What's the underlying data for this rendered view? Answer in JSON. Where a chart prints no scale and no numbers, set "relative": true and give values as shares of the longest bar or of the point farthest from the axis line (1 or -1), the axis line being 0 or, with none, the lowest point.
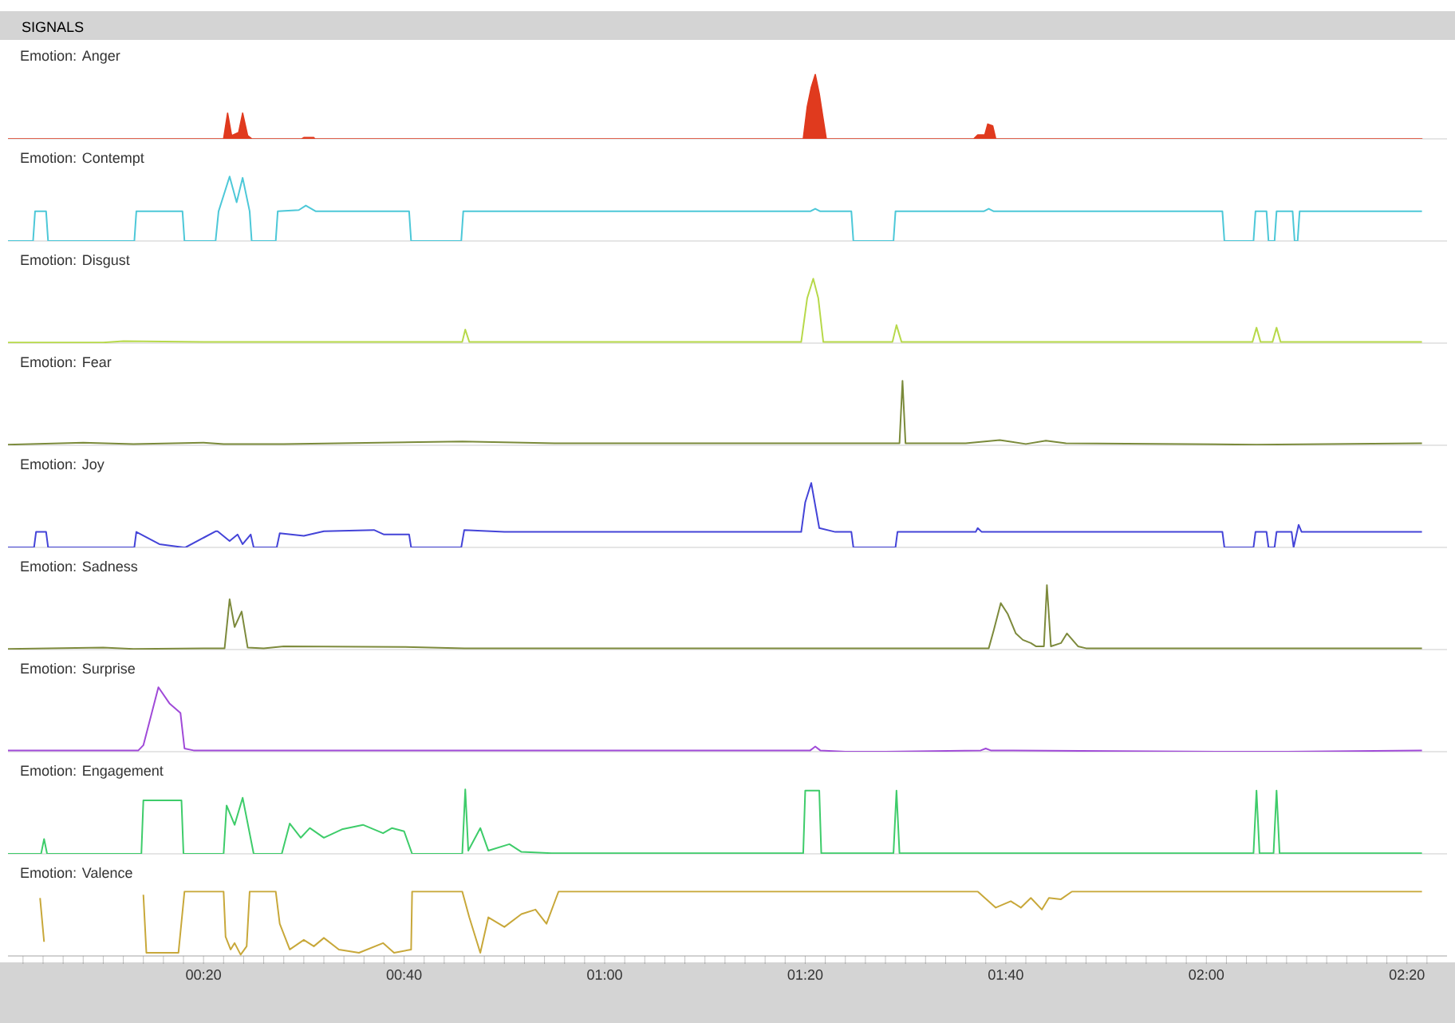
{
  "chart_data": [
    {
      "type": "area",
      "title": "SIGNALS",
      "subtitle": "Emotion: Anger",
      "relative": true,
      "color": "#e03a1e",
      "xlim": [
        0.5,
        144
      ],
      "tick_labels": false,
      "x": [
        0.5,
        22.0,
        22.4,
        22.8,
        23.5,
        23.9,
        24.4,
        24.8,
        29.8,
        30.0,
        31.0,
        31.1,
        79.8,
        80.2,
        80.6,
        81.0,
        81.4,
        81.8,
        82.1,
        96.8,
        97.2,
        97.9,
        98.2,
        98.7,
        99.0,
        141.5
      ],
      "values": [
        0,
        0,
        0.4,
        0.05,
        0.1,
        0.4,
        0.05,
        0,
        0,
        0.02,
        0.02,
        0,
        0,
        0.5,
        0.8,
        1,
        0.7,
        0.3,
        0,
        0,
        0.06,
        0.06,
        0.23,
        0.2,
        0,
        0
      ]
    },
    {
      "type": "line",
      "title": "Emotion: Contempt",
      "relative": true,
      "color": "#4dc8d8",
      "xlim": [
        0.5,
        144
      ],
      "tick_labels": false,
      "x": [
        0.5,
        3.0,
        3.2,
        4.3,
        4.5,
        13.1,
        13.3,
        17.9,
        18.1,
        21.2,
        21.5,
        22.6,
        23.3,
        23.9,
        24.6,
        24.8,
        27.2,
        27.4,
        29.5,
        30.2,
        31.2,
        40.5,
        40.7,
        45.7,
        45.9,
        80.5,
        81.0,
        81.5,
        84.6,
        84.8,
        88.8,
        89.0,
        97.8,
        98.3,
        98.8,
        121.6,
        121.8,
        124.7,
        124.9,
        126.0,
        126.2,
        126.8,
        127.0,
        128.6,
        128.8,
        129.1,
        129.3,
        141.5
      ],
      "values": [
        0,
        0,
        0.46,
        0.46,
        0,
        0,
        0.46,
        0.46,
        0,
        0,
        0.46,
        1,
        0.6,
        0.98,
        0.46,
        0,
        0,
        0.46,
        0.48,
        0.55,
        0.46,
        0.46,
        0,
        0,
        0.46,
        0.46,
        0.5,
        0.46,
        0.46,
        0,
        0,
        0.46,
        0.46,
        0.5,
        0.46,
        0.46,
        0,
        0,
        0.46,
        0.46,
        0,
        0,
        0.46,
        0.46,
        0,
        0,
        0.46,
        0.46
      ]
    },
    {
      "type": "line",
      "title": "Emotion: Disgust",
      "relative": true,
      "color": "#b7d94a",
      "xlim": [
        0.5,
        144
      ],
      "tick_labels": false,
      "x": [
        0.5,
        10.0,
        12.0,
        20.0,
        40.0,
        45.8,
        46.1,
        46.5,
        79.6,
        80.2,
        80.8,
        81.3,
        81.8,
        88.7,
        89.1,
        89.6,
        124.6,
        125.0,
        125.4,
        126.6,
        127.0,
        127.4,
        141.5
      ],
      "values": [
        0.01,
        0.01,
        0.03,
        0.02,
        0.02,
        0.02,
        0.21,
        0.02,
        0.02,
        0.7,
        1,
        0.7,
        0.02,
        0.02,
        0.28,
        0.02,
        0.02,
        0.24,
        0.02,
        0.02,
        0.24,
        0.02,
        0.02
      ]
    },
    {
      "type": "line",
      "title": "Emotion: Fear",
      "relative": true,
      "color": "#7a8a3a",
      "xlim": [
        0.5,
        144
      ],
      "tick_labels": false,
      "x": [
        0.5,
        8.0,
        13.0,
        20.0,
        22.0,
        28.0,
        45.8,
        55.0,
        86.0,
        89.4,
        89.7,
        90.0,
        96.0,
        99.4,
        102.0,
        104.0,
        106.0,
        125.0,
        141.5
      ],
      "values": [
        0.01,
        0.04,
        0.02,
        0.04,
        0.02,
        0.02,
        0.06,
        0.03,
        0.03,
        0.03,
        1,
        0.03,
        0.03,
        0.08,
        0.02,
        0.07,
        0.03,
        0.01,
        0.03
      ]
    },
    {
      "type": "line",
      "title": "Emotion: Joy",
      "relative": true,
      "color": "#4444d8",
      "xlim": [
        0.5,
        144
      ],
      "tick_labels": false,
      "x": [
        0.5,
        3.1,
        3.3,
        4.3,
        4.5,
        13.1,
        13.3,
        15.6,
        18.0,
        18.2,
        21.2,
        21.4,
        22.6,
        23.4,
        23.9,
        24.7,
        25.0,
        27.3,
        27.6,
        30.0,
        32.0,
        37.0,
        38.0,
        40.5,
        40.7,
        45.7,
        46.0,
        50.0,
        79.6,
        80.0,
        80.6,
        81.4,
        83.0,
        84.6,
        84.8,
        89.0,
        89.2,
        97.0,
        97.2,
        97.6,
        121.6,
        121.8,
        124.7,
        124.9,
        126.0,
        126.2,
        126.8,
        127.0,
        128.5,
        128.7,
        129.2,
        129.5,
        141.5
      ],
      "values": [
        0,
        0,
        0.24,
        0.24,
        0,
        0,
        0.24,
        0.05,
        0,
        0,
        0.25,
        0.25,
        0.1,
        0.2,
        0.05,
        0.2,
        0,
        0,
        0.22,
        0.18,
        0.25,
        0.27,
        0.2,
        0.2,
        0,
        0,
        0.27,
        0.24,
        0.24,
        0.7,
        1,
        0.3,
        0.24,
        0.24,
        0,
        0,
        0.24,
        0.24,
        0.3,
        0.24,
        0.24,
        0,
        0,
        0.24,
        0.24,
        0,
        0,
        0.24,
        0.24,
        0,
        0.35,
        0.24,
        0.24
      ]
    },
    {
      "type": "line",
      "title": "Emotion: Sadness",
      "relative": true,
      "color": "#7d8a3c",
      "xlim": [
        0.5,
        144
      ],
      "tick_labels": false,
      "x": [
        0.5,
        10.0,
        13.0,
        22.1,
        22.6,
        23.1,
        23.8,
        24.4,
        26.0,
        28.0,
        40.0,
        46.0,
        98.3,
        98.8,
        99.5,
        100.2,
        101.0,
        101.7,
        102.5,
        103.0,
        103.8,
        104.1,
        104.5,
        105.5,
        106.1,
        107.2,
        108.0,
        141.5
      ],
      "values": [
        0.01,
        0.03,
        0.01,
        0.02,
        0.78,
        0.35,
        0.59,
        0.03,
        0.02,
        0.05,
        0.04,
        0.02,
        0.02,
        0.3,
        0.72,
        0.55,
        0.25,
        0.15,
        0.1,
        0.05,
        0.05,
        1,
        0.05,
        0.1,
        0.25,
        0.05,
        0.02,
        0.02
      ]
    },
    {
      "type": "line",
      "title": "Emotion: Surprise",
      "relative": true,
      "color": "#a04ad8",
      "xlim": [
        0.5,
        144
      ],
      "tick_labels": false,
      "x": [
        0.5,
        13.5,
        14.0,
        15.5,
        16.6,
        17.7,
        18.1,
        19.0,
        80.5,
        81.0,
        81.5,
        84.0,
        88.0,
        97.5,
        98.0,
        98.5,
        122.0,
        128.0,
        141.5
      ],
      "values": [
        0.02,
        0.02,
        0.1,
        1,
        0.75,
        0.6,
        0.05,
        0.02,
        0.02,
        0.08,
        0.02,
        0,
        0,
        0.02,
        0.05,
        0.02,
        0,
        0,
        0.02
      ]
    },
    {
      "type": "line",
      "title": "Emotion: Engagement",
      "relative": true,
      "color": "#3ecc6a",
      "xlim": [
        0.5,
        144
      ],
      "tick_labels": false,
      "x": [
        0.5,
        3.8,
        4.1,
        4.4,
        13.8,
        14.0,
        17.8,
        18.0,
        22.0,
        22.3,
        23.1,
        23.9,
        25.0,
        27.8,
        28.6,
        29.7,
        30.6,
        32.0,
        33.8,
        35.9,
        37.9,
        38.8,
        40.0,
        40.8,
        45.8,
        46.1,
        46.4,
        47.6,
        48.4,
        50.5,
        51.7,
        54.7,
        79.8,
        80.0,
        81.4,
        81.6,
        88.8,
        89.1,
        89.4,
        124.7,
        125.0,
        125.3,
        126.7,
        127.0,
        127.3,
        141.5
      ],
      "values": [
        0,
        0,
        0.23,
        0,
        0,
        0.83,
        0.83,
        0,
        0,
        0.75,
        0.45,
        0.87,
        0,
        0,
        0.47,
        0.25,
        0.4,
        0.25,
        0.38,
        0.45,
        0.32,
        0.4,
        0.35,
        0,
        0,
        1,
        0.05,
        0.4,
        0.05,
        0.15,
        0.03,
        0.01,
        0.01,
        0.98,
        0.98,
        0.01,
        0.01,
        0.98,
        0.01,
        0.01,
        0.98,
        0.01,
        0.01,
        0.98,
        0.01,
        0.01
      ]
    },
    {
      "type": "line",
      "title": "Emotion: Valence",
      "relative": true,
      "color": "#c8a83a",
      "xlim": [
        0.5,
        144
      ],
      "tick_labels": "x",
      "x": [
        3.7,
        4.1,
        4.4,
        14.0,
        14.3,
        17.5,
        18.1,
        22.0,
        22.2,
        22.7,
        23.1,
        23.7,
        24.3,
        24.6,
        27.2,
        27.6,
        28.6,
        30.0,
        31.0,
        32.0,
        33.5,
        35.5,
        37.9,
        39.0,
        40.7,
        40.8,
        45.8,
        46.5,
        47.6,
        48.4,
        50.0,
        51.7,
        53.1,
        54.2,
        55.4,
        97.2,
        99.0,
        100.5,
        101.5,
        102.5,
        103.6,
        104.3,
        105.5,
        106.6,
        141.5
      ],
      "values": [
        0.9,
        0.22,
        null,
        0.95,
        0.05,
        0.05,
        1,
        1,
        0.3,
        0.1,
        0.2,
        0.02,
        0.15,
        1,
        1,
        0.5,
        0.1,
        0.25,
        0.15,
        0.28,
        0.1,
        0.05,
        0.2,
        0.05,
        0.1,
        1,
        1,
        0.6,
        0.05,
        0.6,
        0.45,
        0.65,
        0.72,
        0.5,
        1,
        1,
        0.75,
        0.85,
        0.75,
        0.9,
        0.72,
        0.9,
        0.88,
        1,
        1
      ],
      "xticks": [
        {
          "value": 2,
          "label": null
        },
        {
          "value": 4,
          "label": null
        },
        {
          "value": 6,
          "label": null
        },
        {
          "value": 8,
          "label": null
        },
        {
          "value": 10,
          "label": null
        },
        {
          "value": 12,
          "label": null
        },
        {
          "value": 14,
          "label": null
        },
        {
          "value": 16,
          "label": null
        },
        {
          "value": 18,
          "label": null
        },
        {
          "value": 20,
          "label": "00:20"
        },
        {
          "value": 22,
          "label": null
        },
        {
          "value": 24,
          "label": null
        },
        {
          "value": 26,
          "label": null
        },
        {
          "value": 28,
          "label": null
        },
        {
          "value": 30,
          "label": null
        },
        {
          "value": 32,
          "label": null
        },
        {
          "value": 34,
          "label": null
        },
        {
          "value": 36,
          "label": null
        },
        {
          "value": 38,
          "label": null
        },
        {
          "value": 40,
          "label": "00:40"
        },
        {
          "value": 42,
          "label": null
        },
        {
          "value": 44,
          "label": null
        },
        {
          "value": 46,
          "label": null
        },
        {
          "value": 48,
          "label": null
        },
        {
          "value": 50,
          "label": null
        },
        {
          "value": 52,
          "label": null
        },
        {
          "value": 54,
          "label": null
        },
        {
          "value": 56,
          "label": null
        },
        {
          "value": 58,
          "label": null
        },
        {
          "value": 60,
          "label": "01:00"
        },
        {
          "value": 62,
          "label": null
        },
        {
          "value": 64,
          "label": null
        },
        {
          "value": 66,
          "label": null
        },
        {
          "value": 68,
          "label": null
        },
        {
          "value": 70,
          "label": null
        },
        {
          "value": 72,
          "label": null
        },
        {
          "value": 74,
          "label": null
        },
        {
          "value": 76,
          "label": null
        },
        {
          "value": 78,
          "label": null
        },
        {
          "value": 80,
          "label": "01:20"
        },
        {
          "value": 82,
          "label": null
        },
        {
          "value": 84,
          "label": null
        },
        {
          "value": 86,
          "label": null
        },
        {
          "value": 88,
          "label": null
        },
        {
          "value": 90,
          "label": null
        },
        {
          "value": 92,
          "label": null
        },
        {
          "value": 94,
          "label": null
        },
        {
          "value": 96,
          "label": null
        },
        {
          "value": 98,
          "label": null
        },
        {
          "value": 100,
          "label": "01:40"
        },
        {
          "value": 102,
          "label": null
        },
        {
          "value": 104,
          "label": null
        },
        {
          "value": 106,
          "label": null
        },
        {
          "value": 108,
          "label": null
        },
        {
          "value": 110,
          "label": null
        },
        {
          "value": 112,
          "label": null
        },
        {
          "value": 114,
          "label": null
        },
        {
          "value": 116,
          "label": null
        },
        {
          "value": 118,
          "label": null
        },
        {
          "value": 120,
          "label": "02:00"
        },
        {
          "value": 122,
          "label": null
        },
        {
          "value": 124,
          "label": null
        },
        {
          "value": 126,
          "label": null
        },
        {
          "value": 128,
          "label": null
        },
        {
          "value": 130,
          "label": null
        },
        {
          "value": 132,
          "label": null
        },
        {
          "value": 134,
          "label": null
        },
        {
          "value": 136,
          "label": null
        },
        {
          "value": 138,
          "label": null
        },
        {
          "value": 140,
          "label": "02:20"
        },
        {
          "value": 142,
          "label": null
        }
      ]
    }
  ]
}
